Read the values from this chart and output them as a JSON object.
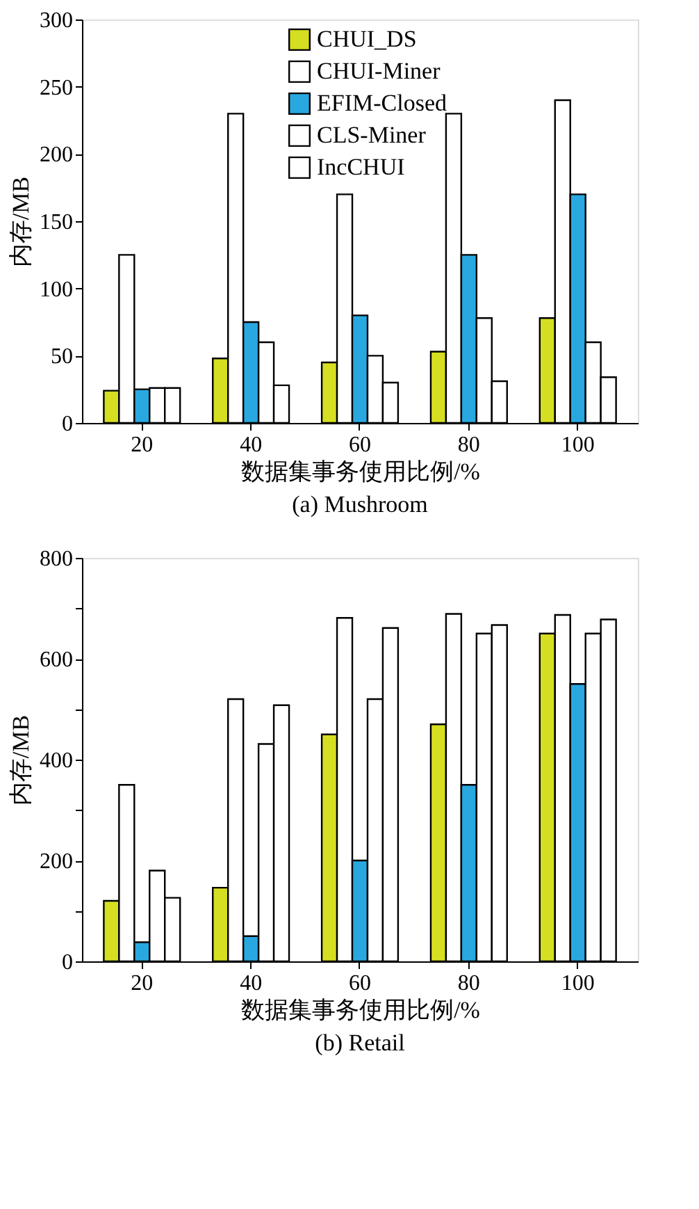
{
  "chart_data": [
    {
      "type": "bar",
      "title": "(a)  Mushroom",
      "xlabel": "数据集事务使用比例/%",
      "ylabel": "内存/MB",
      "categories": [
        "20",
        "40",
        "60",
        "80",
        "100"
      ],
      "ylim": [
        0,
        300
      ],
      "yticks": [
        0,
        50,
        100,
        150,
        200,
        250,
        300
      ],
      "legend": "top",
      "grid": false,
      "series": [
        {
          "name": "CHUI_DS",
          "color": "#d6de22",
          "values": [
            24,
            48,
            45,
            53,
            78
          ]
        },
        {
          "name": "CHUI-Miner",
          "color": "#ffffff",
          "values": [
            125,
            230,
            170,
            230,
            240
          ]
        },
        {
          "name": "EFIM-Closed",
          "color": "#29a8e0",
          "values": [
            25,
            75,
            80,
            125,
            170
          ]
        },
        {
          "name": "CLS-Miner",
          "color": "#ffffff",
          "values": [
            26,
            60,
            50,
            78,
            60
          ]
        },
        {
          "name": "IncCHUI",
          "color": "#ffffff",
          "values": [
            26,
            28,
            30,
            31,
            34
          ]
        }
      ]
    },
    {
      "type": "bar",
      "title": "(b)  Retail",
      "xlabel": "数据集事务使用比例/%",
      "ylabel": "内存/MB",
      "categories": [
        "20",
        "40",
        "60",
        "80",
        "100"
      ],
      "ylim": [
        0,
        800
      ],
      "yticks": [
        0,
        {
          "value": 100,
          "label": null
        },
        200,
        {
          "value": 300,
          "label": null
        },
        400,
        {
          "value": 500,
          "label": null
        },
        600,
        {
          "value": 700,
          "label": null
        },
        800
      ],
      "legend": "top left",
      "grid": false,
      "series": [
        {
          "name": "CHUI_DS",
          "color": "#d6de22",
          "values": [
            120,
            146,
            450,
            470,
            650
          ]
        },
        {
          "name": "CHUI-Miner",
          "color": "#ffffff",
          "values": [
            350,
            520,
            681,
            689,
            687
          ]
        },
        {
          "name": "EFIM-Closed",
          "color": "#29a8e0",
          "values": [
            38,
            50,
            200,
            350,
            550
          ]
        },
        {
          "name": "CLS-Miner",
          "color": "#ffffff",
          "values": [
            180,
            431,
            520,
            650,
            650
          ]
        },
        {
          "name": "IncCHUI",
          "color": "#ffffff",
          "values": [
            126,
            508,
            661,
            667,
            678
          ]
        }
      ]
    }
  ]
}
